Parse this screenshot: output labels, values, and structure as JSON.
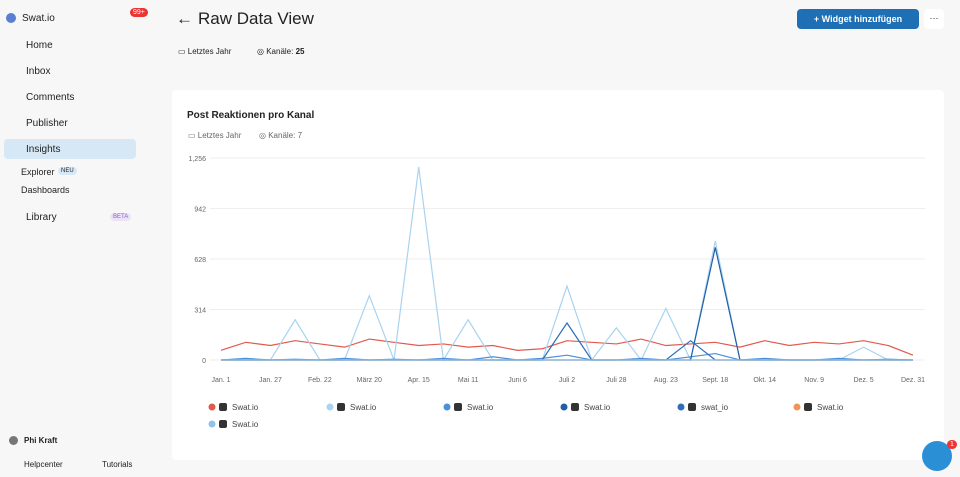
{
  "sidebar": {
    "brand": "Swat.io",
    "badge": "99+",
    "nav": [
      "Home",
      "Inbox",
      "Comments",
      "Publisher",
      "Insights"
    ],
    "sub": [
      "Explorer",
      "Dashboards"
    ],
    "neu": "NEU",
    "library": "Library",
    "beta": "BETA",
    "user": "Phi Kraft",
    "footer": [
      "Helpcenter",
      "Tutorials"
    ]
  },
  "header": {
    "title": "Raw Data View",
    "button": "Widget hinzufügen",
    "period": "Letztes Jahr",
    "channels_label": "Kanäle:",
    "channels": "25"
  },
  "widget": {
    "period": "Letztes Jahr",
    "channels_label": "Kanäle:",
    "channels": "7"
  },
  "chat_badge": "1",
  "chart_data": {
    "type": "line",
    "title": "Post Reaktionen pro Kanal",
    "categories": [
      "Jan. 1",
      null,
      "Jan. 27",
      null,
      "Feb. 22",
      null,
      "März 20",
      null,
      "Apr. 15",
      null,
      "Mai 11",
      null,
      "Juni 6",
      null,
      "Juli 2",
      null,
      "Juli 28",
      null,
      "Aug. 23",
      null,
      "Sept. 18",
      null,
      "Okt. 14",
      null,
      "Nov. 9",
      null,
      "Dez. 5",
      null,
      "Dez. 31"
    ],
    "ylim": [
      0,
      1256
    ],
    "yticks": [
      0,
      314,
      628,
      {
        "value": 942,
        "label": "942"
      },
      {
        "value": 1256,
        "label": "1,256"
      }
    ],
    "grid": true,
    "series": [
      {
        "name": "Swat.io",
        "color": "#e05a4e",
        "values": [
          60,
          110,
          90,
          120,
          100,
          80,
          130,
          110,
          90,
          100,
          80,
          90,
          60,
          70,
          120,
          110,
          100,
          130,
          90,
          100,
          110,
          80,
          120,
          90,
          110,
          100,
          120,
          90,
          30
        ]
      },
      {
        "name": "Swat.io",
        "color": "#a9d3ef",
        "values": [
          0,
          0,
          0,
          250,
          0,
          0,
          400,
          0,
          1200,
          0,
          250,
          0,
          0,
          0,
          460,
          0,
          200,
          0,
          320,
          0,
          740,
          0,
          0,
          0,
          0,
          0,
          80,
          0,
          0
        ]
      },
      {
        "name": "Swat.io",
        "color": "#4a90d9",
        "values": [
          0,
          10,
          0,
          5,
          0,
          10,
          0,
          5,
          0,
          10,
          0,
          20,
          0,
          10,
          30,
          0,
          0,
          10,
          0,
          20,
          40,
          0,
          10,
          0,
          0,
          10,
          0,
          5,
          0
        ]
      },
      {
        "name": "Swat.io",
        "color": "#1f5fa8",
        "values": [
          0,
          0,
          0,
          0,
          0,
          0,
          0,
          0,
          0,
          0,
          0,
          0,
          0,
          0,
          0,
          0,
          0,
          0,
          0,
          0,
          700,
          0,
          0,
          0,
          0,
          0,
          0,
          0,
          0
        ]
      },
      {
        "name": "swat_io",
        "color": "#2f6fb8",
        "values": [
          0,
          0,
          0,
          0,
          0,
          0,
          0,
          0,
          0,
          0,
          0,
          0,
          0,
          0,
          230,
          0,
          0,
          0,
          0,
          120,
          0,
          0,
          0,
          0,
          0,
          0,
          0,
          0,
          0
        ]
      },
      {
        "name": "Swat.io",
        "color": "#f0955a",
        "values": [
          0,
          0,
          0,
          0,
          0,
          0,
          0,
          0,
          0,
          0,
          0,
          0,
          0,
          0,
          0,
          0,
          0,
          0,
          0,
          0,
          0,
          0,
          0,
          0,
          0,
          0,
          0,
          0,
          0
        ]
      },
      {
        "name": "Swat.io",
        "color": "#8fc3ea",
        "values": [
          0,
          0,
          0,
          0,
          0,
          0,
          0,
          0,
          0,
          0,
          0,
          0,
          0,
          0,
          0,
          0,
          0,
          0,
          0,
          0,
          0,
          0,
          0,
          0,
          0,
          0,
          0,
          0,
          0
        ]
      }
    ]
  }
}
